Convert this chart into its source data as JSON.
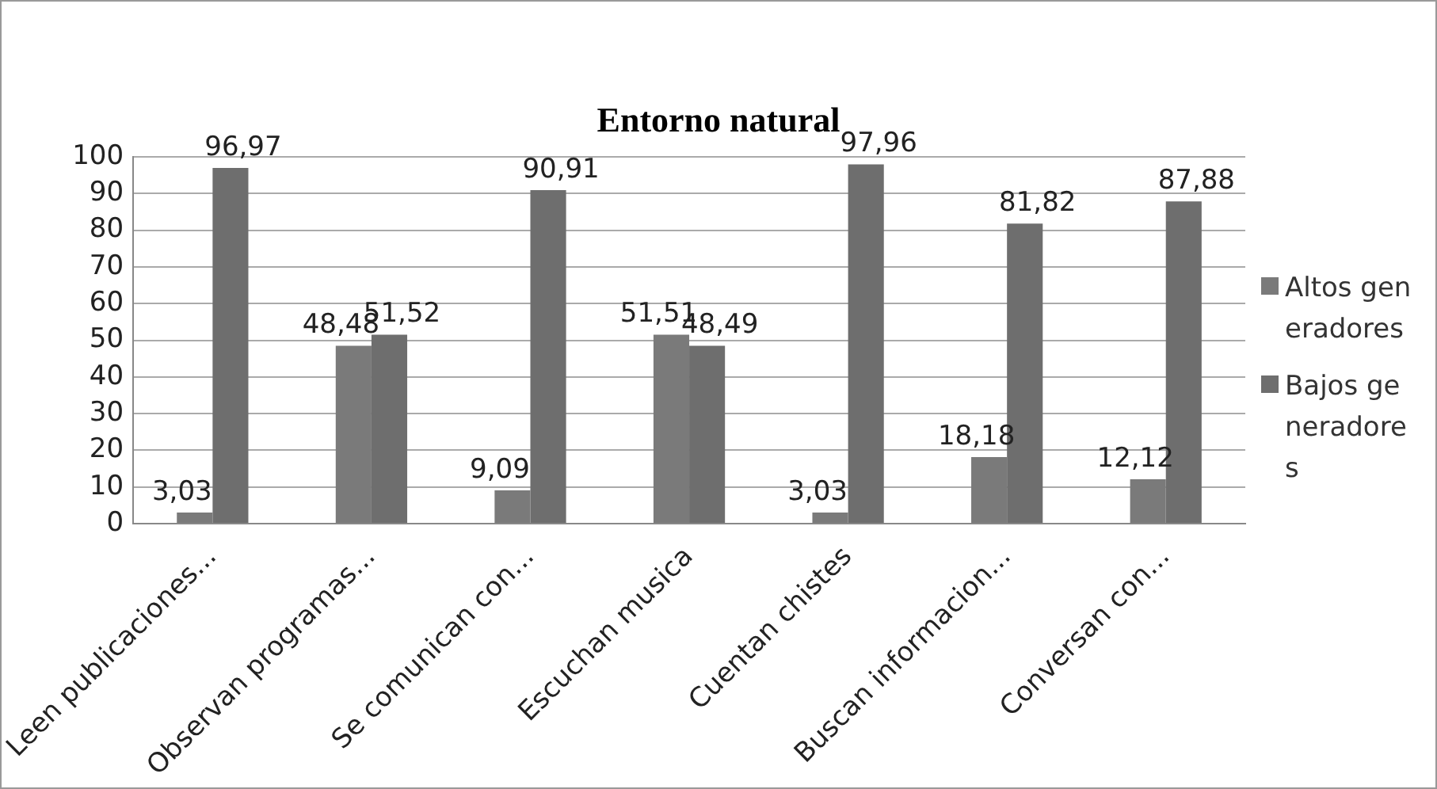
{
  "chart_data": {
    "type": "bar",
    "title": "Entorno natural",
    "categories": [
      "Leen publicaciones...",
      "Observan programas...",
      "Se comunican con...",
      "Escuchan musica",
      "Cuentan chistes",
      "Buscan informacion...",
      "Conversan con..."
    ],
    "series": [
      {
        "name": "Altos generadores",
        "color": "#7a7a7a",
        "values": [
          3.03,
          48.48,
          9.09,
          51.51,
          3.03,
          18.18,
          12.12
        ],
        "value_labels": [
          "3,03",
          "48,48",
          "9,09",
          "51,51",
          "3,03",
          "18,18",
          "12,12"
        ]
      },
      {
        "name": "Bajos generadores",
        "color": "#6e6e6e",
        "values": [
          96.97,
          51.52,
          90.91,
          48.49,
          97.96,
          81.82,
          87.88
        ],
        "value_labels": [
          "96,97",
          "51,52",
          "90,91",
          "48,49",
          "97,96",
          "81,82",
          "87,88"
        ]
      }
    ],
    "ylim": [
      0,
      100
    ],
    "yticks": [
      0,
      10,
      20,
      30,
      40,
      50,
      60,
      70,
      80,
      90,
      100
    ],
    "grid": "y",
    "legend": "right"
  }
}
